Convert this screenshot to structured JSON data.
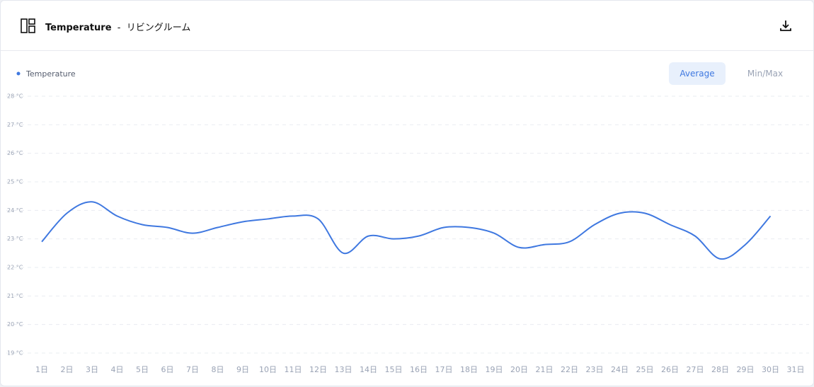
{
  "header": {
    "title": "Temperature",
    "separator": "-",
    "subtitle": "リビングルーム"
  },
  "controls": [
    "Average",
    "Min/Max"
  ],
  "chart_data": {
    "type": "line",
    "categories": [
      "1日",
      "2日",
      "3日",
      "4日",
      "5日",
      "6日",
      "7日",
      "8日",
      "9日",
      "10日",
      "11日",
      "12日",
      "13日",
      "14日",
      "15日",
      "16日",
      "17日",
      "18日",
      "19日",
      "20日",
      "21日",
      "22日",
      "23日",
      "24日",
      "25日",
      "26日",
      "27日",
      "28日",
      "29日",
      "30日",
      "31日"
    ],
    "series": [
      {
        "name": "Temperature",
        "color": "#3f78e0",
        "values": [
          22.9,
          23.9,
          24.3,
          23.8,
          23.5,
          23.4,
          23.2,
          23.4,
          23.6,
          23.7,
          23.8,
          23.7,
          22.5,
          23.1,
          23.0,
          23.1,
          23.4,
          23.4,
          23.2,
          22.7,
          22.8,
          22.9,
          23.5,
          23.9,
          23.9,
          23.5,
          23.1,
          22.3,
          22.8,
          23.8,
          null
        ]
      }
    ],
    "ylim": [
      19,
      28
    ],
    "yticks": [
      {
        "value": 19,
        "label": "19 °C"
      },
      {
        "value": 20,
        "label": "20 °C"
      },
      {
        "value": 21,
        "label": "21 °C"
      },
      {
        "value": 22,
        "label": "22 °C"
      },
      {
        "value": 23,
        "label": "23 °C"
      },
      {
        "value": 24,
        "label": "24 °C"
      },
      {
        "value": 25,
        "label": "25 °C"
      },
      {
        "value": 26,
        "label": "26 °C"
      },
      {
        "value": 27,
        "label": "27 °C"
      },
      {
        "value": 28,
        "label": "28 °C"
      }
    ],
    "grid": true,
    "smooth": true
  }
}
